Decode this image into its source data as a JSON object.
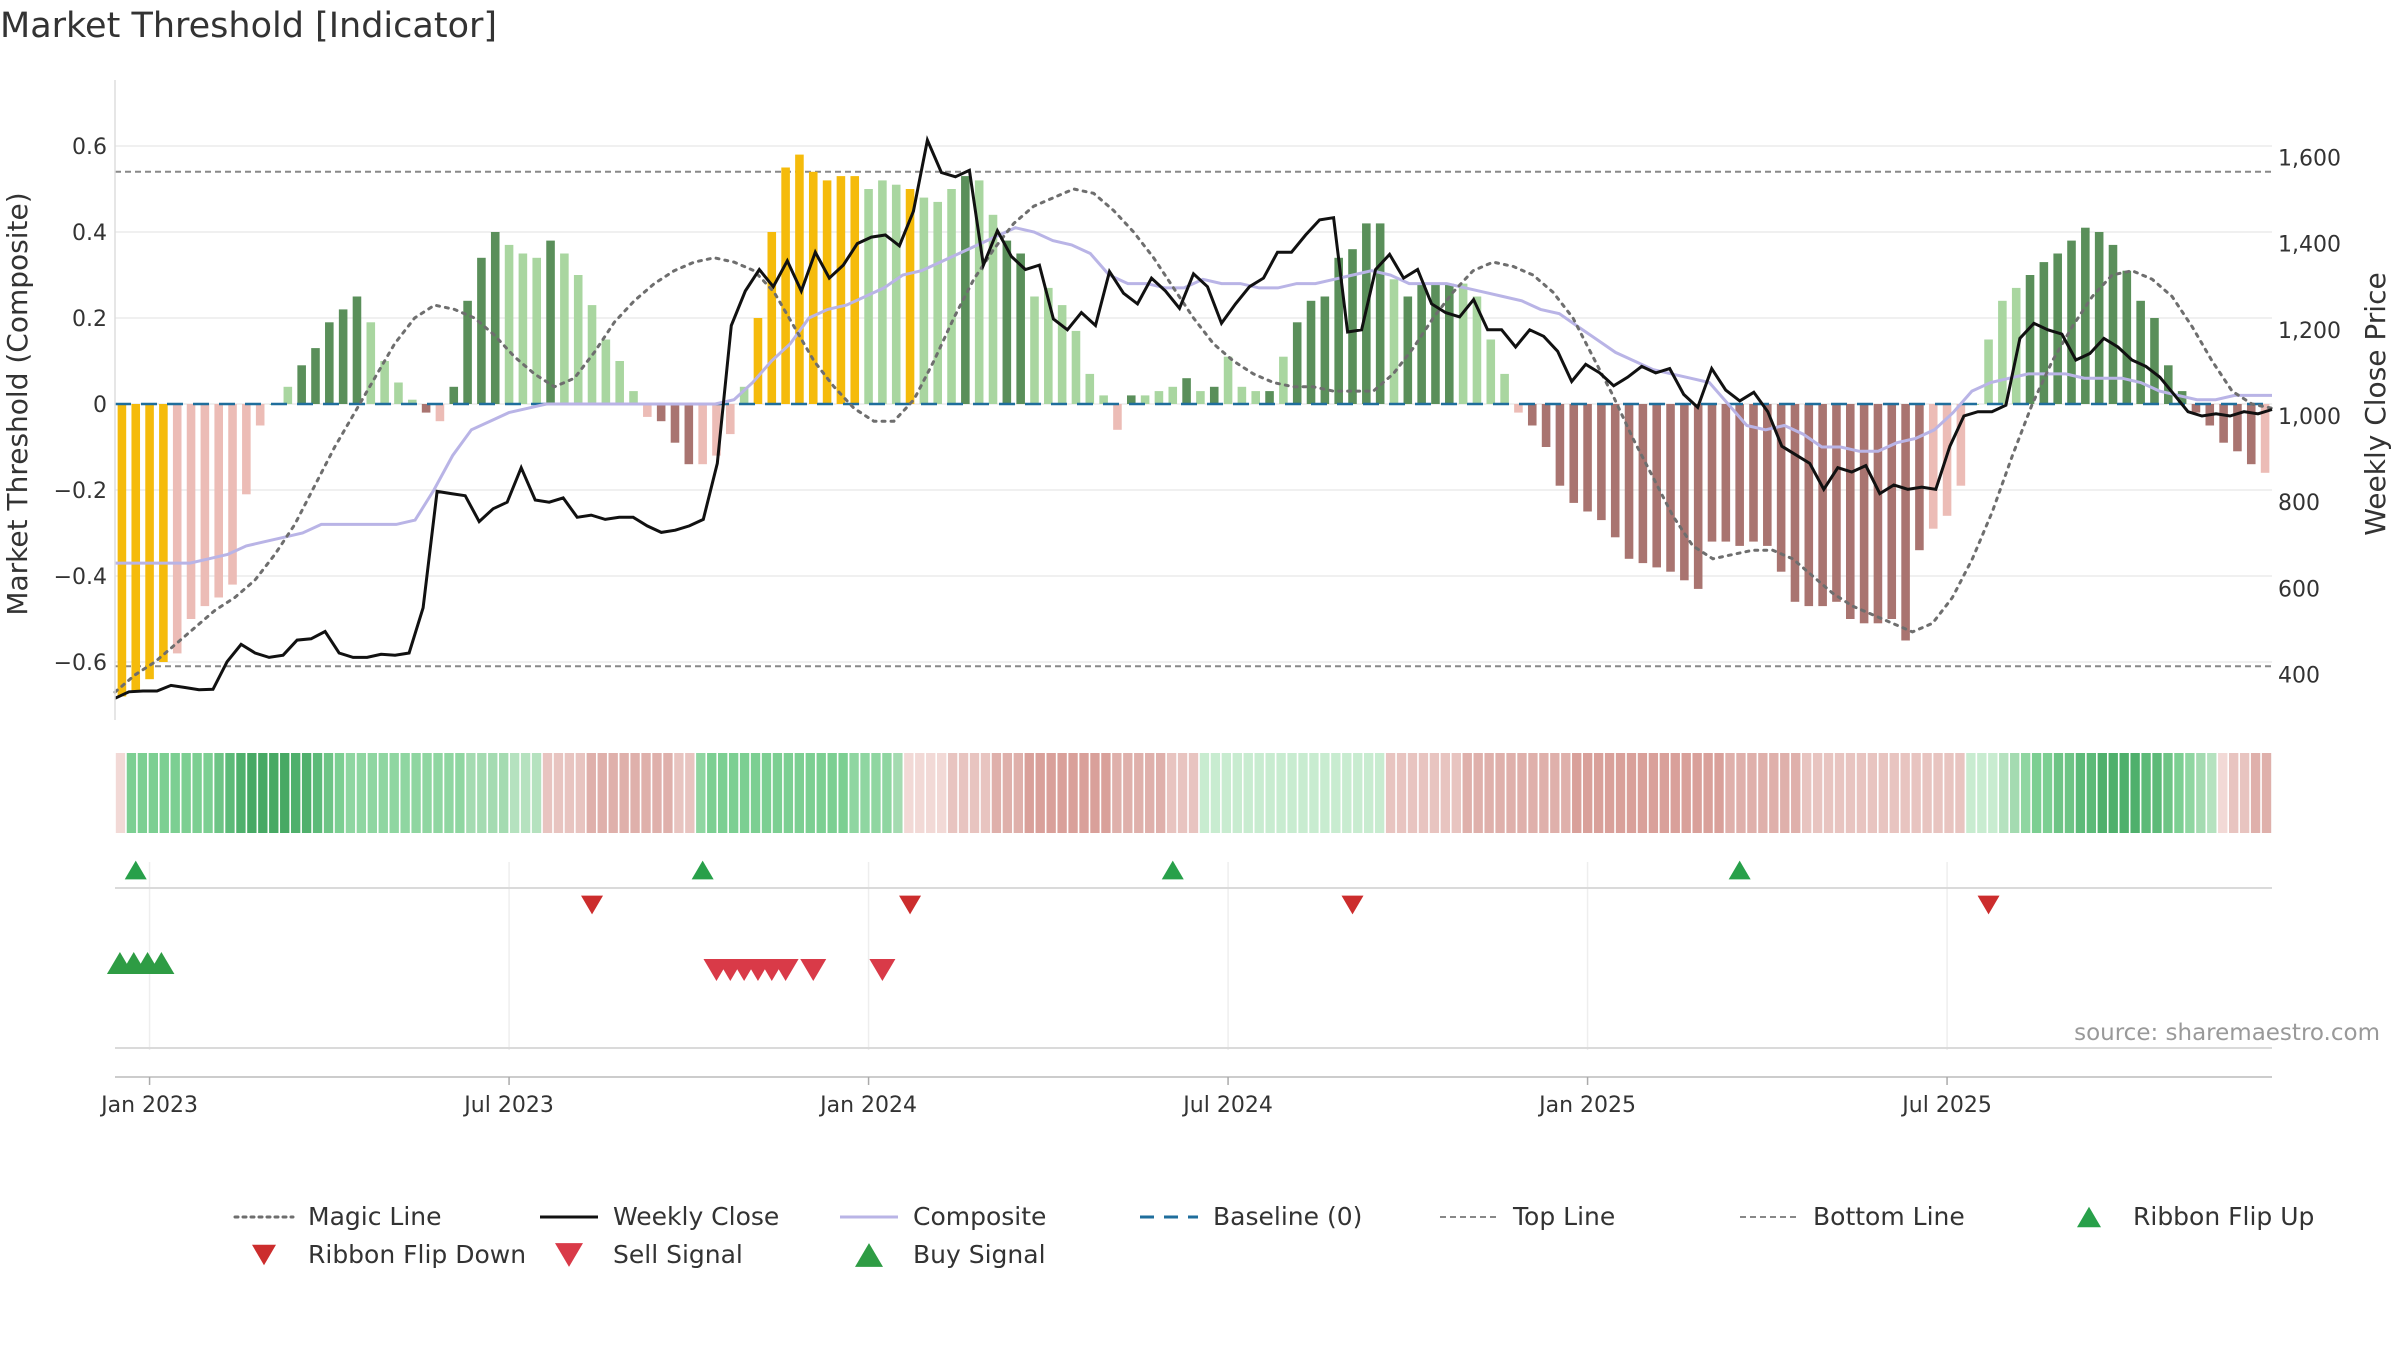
{
  "title": "Market Threshold [Indicator]",
  "source": "source: sharemaestro.com",
  "colors": {
    "magic_line": "#6e6e6e",
    "weekly_close": "#111111",
    "composite": "#b9b4e6",
    "baseline": "#1f6e9c",
    "bar_pos_strong": "#5a8f5a",
    "bar_pos_weak": "#a9d6a0",
    "bar_neg_strong": "#a97470",
    "bar_neg_weak": "#ecbcb6",
    "bar_extreme": "#f5bb0b",
    "buy": "#2e9c44",
    "sell": "#d93a48",
    "flip_up": "#28a04a",
    "flip_down": "#cc2d2d"
  },
  "chart_data": {
    "type": "bar",
    "title": "Market Threshold [Indicator]",
    "y_left": {
      "label": "Market Threshold (Composite)",
      "ticks": [
        "0.6",
        "0.4",
        "0.2",
        "0",
        "−0.2",
        "−0.4",
        "−0.6"
      ],
      "range": [
        -0.7,
        0.75
      ]
    },
    "y_right": {
      "label": "Weekly Close Price",
      "ticks": [
        "1,600",
        "1,400",
        "1,200",
        "1,000",
        "800",
        "600",
        "400"
      ],
      "range": [
        330,
        1700
      ]
    },
    "x_ticks": [
      "Jan 2023",
      "Jul 2023",
      "Jan 2024",
      "Jul 2024",
      "Jan 2025",
      "Jul 2025"
    ],
    "x_tick_weeks": [
      2,
      28,
      54,
      80,
      106,
      132
    ],
    "top_line": 0.54,
    "bottom_line": -0.61,
    "grid": true,
    "legend_position": "bottom",
    "legend": [
      {
        "label": "Magic Line",
        "kind": "dotted"
      },
      {
        "label": "Weekly Close",
        "kind": "solid"
      },
      {
        "label": "Composite",
        "kind": "composite"
      },
      {
        "label": "Baseline (0)",
        "kind": "dashed"
      },
      {
        "label": "Top Line",
        "kind": "dashed-thin"
      },
      {
        "label": "Bottom Line",
        "kind": "dashed-thin"
      },
      {
        "label": "Ribbon Flip Up",
        "kind": "tri-up-green"
      },
      {
        "label": "Ribbon Flip Down",
        "kind": "tri-down-red"
      },
      {
        "label": "Sell Signal",
        "kind": "tri-down-sell"
      },
      {
        "label": "Buy Signal",
        "kind": "tri-up-buy"
      }
    ],
    "bars": [
      -0.68,
      -0.67,
      -0.64,
      -0.6,
      -0.58,
      -0.5,
      -0.47,
      -0.45,
      -0.42,
      -0.21,
      -0.05,
      0,
      0.04,
      0.09,
      0.13,
      0.19,
      0.22,
      0.25,
      0.19,
      0.1,
      0.05,
      0.01,
      -0.02,
      -0.04,
      0.04,
      0.24,
      0.34,
      0.4,
      0.37,
      0.35,
      0.34,
      0.38,
      0.35,
      0.3,
      0.23,
      0.15,
      0.1,
      0.03,
      -0.03,
      -0.04,
      -0.09,
      -0.14,
      -0.14,
      -0.12,
      -0.07,
      0.04,
      0.2,
      0.4,
      0.55,
      0.58,
      0.54,
      0.52,
      0.53,
      0.53,
      0.5,
      0.52,
      0.51,
      0.5,
      0.48,
      0.47,
      0.5,
      0.53,
      0.52,
      0.44,
      0.38,
      0.35,
      0.25,
      0.27,
      0.23,
      0.17,
      0.07,
      0.02,
      -0.06,
      0.02,
      0.02,
      0.03,
      0.04,
      0.06,
      0.03,
      0.04,
      0.11,
      0.04,
      0.03,
      0.03,
      0.11,
      0.19,
      0.24,
      0.25,
      0.34,
      0.36,
      0.42,
      0.42,
      0.29,
      0.25,
      0.28,
      0.28,
      0.28,
      0.28,
      0.25,
      0.15,
      0.07,
      -0.02,
      -0.05,
      -0.1,
      -0.19,
      -0.23,
      -0.25,
      -0.27,
      -0.31,
      -0.36,
      -0.37,
      -0.38,
      -0.39,
      -0.41,
      -0.43,
      -0.32,
      -0.32,
      -0.33,
      -0.32,
      -0.33,
      -0.39,
      -0.46,
      -0.47,
      -0.47,
      -0.46,
      -0.5,
      -0.51,
      -0.51,
      -0.5,
      -0.55,
      -0.34,
      -0.29,
      -0.26,
      -0.19,
      0,
      0.15,
      0.24,
      0.27,
      0.3,
      0.33,
      0.35,
      0.38,
      0.41,
      0.4,
      0.37,
      0.31,
      0.24,
      0.2,
      0.09,
      0.03,
      -0.02,
      -0.05,
      -0.09,
      -0.11,
      -0.14,
      -0.16
    ],
    "extreme_bar_weeks": [
      0,
      1,
      2,
      3,
      46,
      47,
      48,
      49,
      50,
      51,
      52,
      53,
      57
    ],
    "strong_bar_weeks": [
      13,
      14,
      15,
      16,
      17,
      22,
      24,
      25,
      26,
      27,
      31,
      39,
      40,
      41,
      47,
      61,
      64,
      65,
      73,
      77,
      79,
      83,
      85,
      86,
      87,
      88,
      89,
      90,
      91,
      93,
      94,
      95,
      96,
      102,
      103,
      104,
      105,
      106,
      107,
      108,
      109,
      110,
      111,
      112,
      113,
      114,
      115,
      116,
      117,
      118,
      119,
      120,
      121,
      122,
      123,
      124,
      125,
      126,
      127,
      128,
      129,
      130,
      138,
      139,
      140,
      141,
      142,
      143,
      144,
      145,
      146,
      147,
      148,
      149,
      150,
      151,
      152,
      153,
      154
    ],
    "weekly_close": [
      345,
      360,
      362,
      362,
      375,
      370,
      365,
      366,
      430,
      470,
      450,
      440,
      445,
      480,
      483,
      500,
      450,
      440,
      440,
      447,
      445,
      450,
      555,
      825,
      820,
      815,
      755,
      785,
      800,
      880,
      805,
      800,
      810,
      765,
      770,
      760,
      765,
      765,
      745,
      730,
      735,
      745,
      760,
      890,
      1210,
      1290,
      1340,
      1300,
      1360,
      1290,
      1380,
      1320,
      1350,
      1400,
      1415,
      1420,
      1395,
      1475,
      1640,
      1565,
      1555,
      1570,
      1350,
      1430,
      1370,
      1340,
      1350,
      1225,
      1200,
      1240,
      1210,
      1335,
      1285,
      1260,
      1320,
      1290,
      1250,
      1330,
      1300,
      1215,
      1260,
      1300,
      1320,
      1380,
      1380,
      1420,
      1455,
      1460,
      1195,
      1200,
      1340,
      1375,
      1320,
      1340,
      1260,
      1240,
      1230,
      1270,
      1200,
      1200,
      1160,
      1200,
      1185,
      1150,
      1080,
      1120,
      1100,
      1070,
      1090,
      1115,
      1100,
      1110,
      1050,
      1020,
      1110,
      1060,
      1035,
      1055,
      1010,
      930,
      910,
      890,
      830,
      880,
      870,
      885,
      820,
      840,
      830,
      835,
      830,
      930,
      1000,
      1010,
      1010,
      1025,
      1180,
      1215,
      1200,
      1190,
      1130,
      1145,
      1180,
      1160,
      1130,
      1115,
      1090,
      1050,
      1010,
      1000,
      1005,
      1000,
      1010,
      1005,
      1015
    ],
    "composite": [
      -0.37,
      -0.37,
      -0.37,
      -0.37,
      -0.37,
      -0.36,
      -0.35,
      -0.33,
      -0.32,
      -0.31,
      -0.3,
      -0.28,
      -0.28,
      -0.28,
      -0.28,
      -0.28,
      -0.27,
      -0.2,
      -0.12,
      -0.06,
      -0.04,
      -0.02,
      -0.01,
      0,
      0,
      0,
      0,
      0,
      0,
      0,
      0,
      0,
      0,
      0.01,
      0.05,
      0.1,
      0.14,
      0.2,
      0.22,
      0.23,
      0.25,
      0.27,
      0.3,
      0.31,
      0.33,
      0.35,
      0.37,
      0.39,
      0.41,
      0.4,
      0.38,
      0.37,
      0.35,
      0.3,
      0.28,
      0.28,
      0.27,
      0.27,
      0.29,
      0.28,
      0.28,
      0.27,
      0.27,
      0.28,
      0.28,
      0.29,
      0.3,
      0.31,
      0.3,
      0.28,
      0.28,
      0.28,
      0.27,
      0.26,
      0.25,
      0.24,
      0.22,
      0.21,
      0.18,
      0.15,
      0.12,
      0.1,
      0.08,
      0.07,
      0.06,
      0.05,
      0,
      -0.05,
      -0.06,
      -0.05,
      -0.07,
      -0.1,
      -0.1,
      -0.11,
      -0.11,
      -0.09,
      -0.08,
      -0.06,
      -0.02,
      0.03,
      0.05,
      0.06,
      0.07,
      0.07,
      0.07,
      0.06,
      0.06,
      0.06,
      0.05,
      0.03,
      0.02,
      0.01,
      0.01,
      0.02,
      0.02,
      0.02
    ],
    "magic_line": [
      -0.67,
      -0.63,
      -0.6,
      -0.56,
      -0.52,
      -0.48,
      -0.45,
      -0.41,
      -0.35,
      -0.28,
      -0.19,
      -0.1,
      -0.02,
      0.06,
      0.14,
      0.2,
      0.23,
      0.22,
      0.2,
      0.16,
      0.11,
      0.07,
      0.04,
      0.06,
      0.12,
      0.19,
      0.24,
      0.28,
      0.31,
      0.33,
      0.34,
      0.33,
      0.31,
      0.26,
      0.18,
      0.1,
      0.04,
      -0.01,
      -0.04,
      -0.04,
      0.01,
      0.1,
      0.2,
      0.29,
      0.36,
      0.42,
      0.46,
      0.48,
      0.5,
      0.49,
      0.45,
      0.4,
      0.34,
      0.27,
      0.2,
      0.14,
      0.1,
      0.07,
      0.05,
      0.04,
      0.04,
      0.03,
      0.03,
      0.03,
      0.07,
      0.13,
      0.2,
      0.26,
      0.31,
      0.33,
      0.32,
      0.3,
      0.26,
      0.2,
      0.11,
      0.02,
      -0.08,
      -0.17,
      -0.26,
      -0.33,
      -0.36,
      -0.35,
      -0.34,
      -0.34,
      -0.36,
      -0.4,
      -0.44,
      -0.47,
      -0.49,
      -0.51,
      -0.53,
      -0.51,
      -0.45,
      -0.36,
      -0.25,
      -0.12,
      0,
      0.1,
      0.18,
      0.25,
      0.3,
      0.31,
      0.29,
      0.25,
      0.18,
      0.1,
      0.03,
      0,
      -0.01
    ],
    "ribbon_tones": [
      "#f2d9d6",
      "#7ccf92",
      "#7ccf92",
      "#7ccf92",
      "#7ccf92",
      "#7ccf92",
      "#7ccf92",
      "#7ccf92",
      "#7ccf92",
      "#6dc485",
      "#5cba78",
      "#4fb06c",
      "#47a964",
      "#47a964",
      "#47a964",
      "#47a964",
      "#4fb06c",
      "#4fb06c",
      "#5cba78",
      "#6dc485",
      "#7ccf92",
      "#8fd6a1",
      "#8fd6a1",
      "#8fd6a1",
      "#8fd6a1",
      "#8fd6a1",
      "#8fd6a1",
      "#8fd6a1",
      "#8fd6a1",
      "#8fd6a1",
      "#8fd6a1",
      "#8fd6a1",
      "#a4dbb1",
      "#a4dbb1",
      "#a4dbb1",
      "#a4dbb1",
      "#b5e2bf",
      "#b5e2bf",
      "#b5e2bf",
      "#e8c4c0",
      "#e8c4c0",
      "#e8c4c0",
      "#e8c4c0",
      "#dfb0ab",
      "#dfb0ab",
      "#dfb0ab",
      "#dfb0ab",
      "#dfb0ab",
      "#dfb0ab",
      "#dfb0ab",
      "#dfb0ab",
      "#e8c4c0",
      "#e8c4c0",
      "#8fd6a1",
      "#7ccf92",
      "#7ccf92",
      "#7ccf92",
      "#7ccf92",
      "#7ccf92",
      "#7ccf92",
      "#7ccf92",
      "#7ccf92",
      "#7ccf92",
      "#7ccf92",
      "#7ccf92",
      "#7ccf92",
      "#7ccf92",
      "#8fd6a1",
      "#8fd6a1",
      "#8fd6a1",
      "#8fd6a1",
      "#a4dbb1",
      "#f2d9d6",
      "#f2d9d6",
      "#f2d9d6",
      "#f2d9d6",
      "#e8c4c0",
      "#e8c4c0",
      "#e8c4c0",
      "#e8c4c0",
      "#dfb0ab",
      "#dfb0ab",
      "#dfb0ab",
      "#d9a09a",
      "#d9a09a",
      "#d9a09a",
      "#d9a09a",
      "#d9a09a",
      "#d9a09a",
      "#d9a09a",
      "#d9a09a",
      "#dfb0ab",
      "#dfb0ab",
      "#dfb0ab",
      "#dfb0ab",
      "#dfb0ab",
      "#e8c4c0",
      "#e8c4c0",
      "#e8c4c0",
      "#c8ecd0",
      "#c8ecd0",
      "#c8ecd0",
      "#c8ecd0",
      "#c8ecd0",
      "#c8ecd0",
      "#c8ecd0",
      "#c8ecd0",
      "#c8ecd0",
      "#c8ecd0",
      "#c8ecd0",
      "#c8ecd0",
      "#c8ecd0",
      "#c8ecd0",
      "#c8ecd0",
      "#c8ecd0",
      "#c8ecd0",
      "#e8c4c0",
      "#e8c4c0",
      "#e8c4c0",
      "#e8c4c0",
      "#e8c4c0",
      "#e8c4c0",
      "#e8c4c0",
      "#dfb0ab",
      "#dfb0ab",
      "#dfb0ab",
      "#dfb0ab",
      "#dfb0ab",
      "#dfb0ab",
      "#dfb0ab",
      "#dfb0ab",
      "#dfb0ab",
      "#dfb0ab",
      "#d9a09a",
      "#d9a09a",
      "#d9a09a",
      "#d9a09a",
      "#d9a09a",
      "#d9a09a",
      "#d9a09a",
      "#d9a09a",
      "#d9a09a",
      "#d9a09a",
      "#d9a09a",
      "#d9a09a",
      "#d9a09a",
      "#d9a09a",
      "#dfb0ab",
      "#dfb0ab",
      "#dfb0ab",
      "#dfb0ab",
      "#dfb0ab",
      "#dfb0ab",
      "#dfb0ab",
      "#e8c4c0",
      "#e8c4c0",
      "#e8c4c0",
      "#e8c4c0",
      "#e8c4c0",
      "#e8c4c0",
      "#e8c4c0",
      "#e8c4c0",
      "#e8c4c0",
      "#e8c4c0",
      "#e8c4c0",
      "#e8c4c0",
      "#e8c4c0",
      "#e8c4c0",
      "#e8c4c0",
      "#c8ecd0",
      "#c8ecd0",
      "#c8ecd0",
      "#b5e2bf",
      "#a4dbb1",
      "#8fd6a1",
      "#7ccf92",
      "#7ccf92",
      "#6dc485",
      "#6dc485",
      "#5cba78",
      "#5cba78",
      "#4fb06c",
      "#4fb06c",
      "#4fb06c",
      "#4fb06c",
      "#5cba78",
      "#5cba78",
      "#6dc485",
      "#7ccf92",
      "#8fd6a1",
      "#a4dbb1",
      "#b5e2bf",
      "#f2d9d6",
      "#e8c4c0",
      "#e8c4c0",
      "#dfb0ab",
      "#dfb0ab"
    ],
    "flip_up_weeks": [
      1,
      42,
      76,
      117
    ],
    "flip_down_weeks": [
      34,
      57,
      89,
      135
    ],
    "buy_signal_weeks": [
      0,
      1,
      2,
      3
    ],
    "sell_signal_weeks": [
      43,
      44,
      45,
      46,
      47,
      48,
      50,
      55
    ]
  }
}
